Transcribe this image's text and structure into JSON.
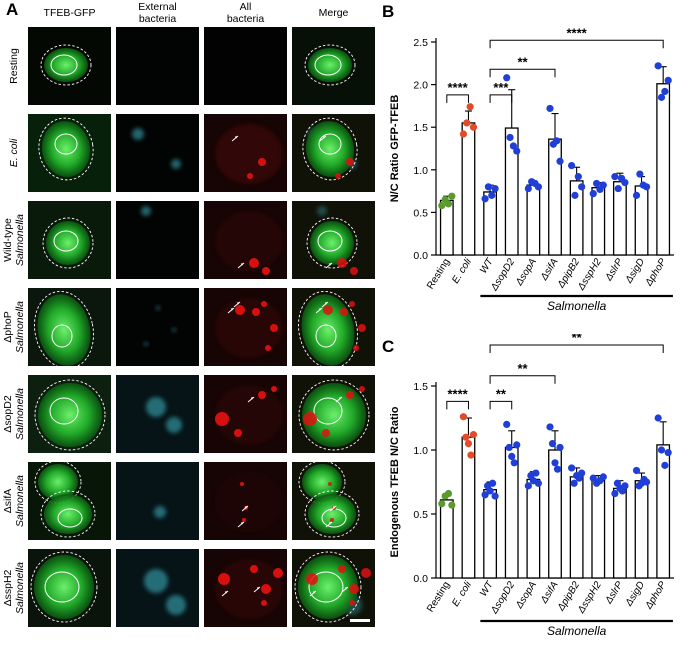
{
  "panel_a": {
    "letter": "A",
    "columns": [
      {
        "id": "tfeb",
        "lines": [
          "TFEB-GFP"
        ]
      },
      {
        "id": "ext",
        "lines": [
          "External",
          "bacteria"
        ]
      },
      {
        "id": "all",
        "lines": [
          "All",
          "bacteria"
        ]
      },
      {
        "id": "merge",
        "lines": [
          "Merge"
        ]
      }
    ],
    "rows": [
      {
        "id": "resting",
        "line1": "Resting",
        "line2": "",
        "italic1": false
      },
      {
        "id": "ecoli",
        "line1": "E. coli",
        "line2": "",
        "italic1": true
      },
      {
        "id": "wt",
        "line1": "Wild-type",
        "line2": "Salmonella",
        "italic1": false
      },
      {
        "id": "phop",
        "line1": "ΔphoP",
        "line2": "Salmonella",
        "italic1": false
      },
      {
        "id": "sopd2",
        "line1": "ΔsopD2",
        "line2": "Salmonella",
        "italic1": false
      },
      {
        "id": "sifa",
        "line1": "ΔsifA",
        "line2": "Salmonella",
        "italic1": false
      },
      {
        "id": "ssph2",
        "line1": "ΔsspH2",
        "line2": "Salmonella",
        "italic1": false
      }
    ],
    "colors": {
      "tfeb_green": "#22b02a",
      "bacteria_red": "#e01010",
      "external_cyan": "#3fb7c4",
      "tile_bg": "#050505"
    }
  },
  "chart_data": [
    {
      "panel_letter": "B",
      "type": "bar",
      "ylabel": "N/C Ratio GFP-TFEB",
      "ylim": [
        0,
        2.5
      ],
      "yticks": [
        0.0,
        0.5,
        1.0,
        1.5,
        2.0,
        2.5
      ],
      "categories": [
        "Resting",
        "E. coli",
        "WT",
        "ΔsopD2",
        "ΔsopA",
        "ΔsifA",
        "ΔpipB2",
        "ΔsspH2",
        "ΔslrP",
        "ΔsigD",
        "ΔphoP"
      ],
      "values": [
        0.64,
        1.55,
        0.74,
        1.49,
        0.82,
        1.36,
        0.87,
        0.79,
        0.86,
        0.81,
        2.01
      ],
      "errors": [
        0.05,
        0.14,
        0.08,
        0.45,
        0.05,
        0.3,
        0.16,
        0.06,
        0.1,
        0.11,
        0.2
      ],
      "points": [
        [
          0.58,
          0.65,
          0.6,
          0.69
        ],
        [
          1.42,
          1.55,
          1.74,
          1.5
        ],
        [
          0.66,
          0.8,
          0.7,
          0.78
        ],
        [
          2.08,
          1.38,
          1.28,
          1.22
        ],
        [
          0.78,
          0.86,
          0.84,
          0.8
        ],
        [
          1.72,
          1.3,
          1.34,
          1.1
        ],
        [
          1.05,
          0.7,
          0.92,
          0.8
        ],
        [
          0.72,
          0.84,
          0.77,
          0.82
        ],
        [
          0.92,
          0.78,
          0.9,
          0.85
        ],
        [
          0.7,
          0.95,
          0.82,
          0.8
        ],
        [
          2.22,
          1.85,
          1.92,
          2.05
        ]
      ],
      "point_colors": [
        "#5a9a2e",
        "#e34a28",
        "#1f3fd6",
        "#1f3fd6",
        "#1f3fd6",
        "#1f3fd6",
        "#1f3fd6",
        "#1f3fd6",
        "#1f3fd6",
        "#1f3fd6",
        "#1f3fd6"
      ],
      "significance": [
        {
          "from": 0,
          "to": 1,
          "label": "****",
          "level": 1.88
        },
        {
          "from": 2,
          "to": 3,
          "label": "***",
          "level": 1.88
        },
        {
          "from": 2,
          "to": 5,
          "label": "**",
          "level": 2.18
        },
        {
          "from": 2,
          "to": 10,
          "label": "****",
          "level": 2.52
        }
      ],
      "group_label": "Salmonella",
      "group_from": 2,
      "group_to": 10
    },
    {
      "panel_letter": "C",
      "type": "bar",
      "ylabel": "Endogenous TFEB N/C Ratio",
      "ylim": [
        0,
        1.5
      ],
      "yticks": [
        0.0,
        0.5,
        1.0,
        1.5
      ],
      "categories": [
        "Resting",
        "E. coli",
        "WT",
        "ΔsopD2",
        "ΔsopA",
        "ΔsifA",
        "ΔpipB2",
        "ΔsspH2",
        "ΔslrP",
        "ΔsigD",
        "ΔphoP"
      ],
      "values": [
        0.61,
        1.1,
        0.69,
        1.02,
        0.77,
        1.0,
        0.79,
        0.76,
        0.7,
        0.76,
        1.04
      ],
      "errors": [
        0.05,
        0.15,
        0.06,
        0.13,
        0.06,
        0.15,
        0.07,
        0.04,
        0.06,
        0.06,
        0.18
      ],
      "points": [
        [
          0.58,
          0.64,
          0.66,
          0.57
        ],
        [
          1.26,
          1.1,
          1.05,
          0.96,
          1.12
        ],
        [
          0.65,
          0.72,
          0.68,
          0.74,
          0.64
        ],
        [
          1.2,
          1.02,
          0.95,
          0.9,
          1.04
        ],
        [
          0.72,
          0.8,
          0.76,
          0.82,
          0.74
        ],
        [
          1.18,
          1.05,
          0.9,
          0.85,
          1.02
        ],
        [
          0.86,
          0.74,
          0.8,
          0.78,
          0.82
        ],
        [
          0.78,
          0.74,
          0.76,
          0.79
        ],
        [
          0.66,
          0.74,
          0.7,
          0.68,
          0.72
        ],
        [
          0.84,
          0.72,
          0.74,
          0.77,
          0.75
        ],
        [
          1.25,
          1.0,
          0.88,
          0.98
        ]
      ],
      "point_colors": [
        "#5a9a2e",
        "#e34a28",
        "#1f3fd6",
        "#1f3fd6",
        "#1f3fd6",
        "#1f3fd6",
        "#1f3fd6",
        "#1f3fd6",
        "#1f3fd6",
        "#1f3fd6",
        "#1f3fd6"
      ],
      "significance": [
        {
          "from": 0,
          "to": 1,
          "label": "****",
          "level": 1.38
        },
        {
          "from": 2,
          "to": 3,
          "label": "**",
          "level": 1.38
        },
        {
          "from": 2,
          "to": 5,
          "label": "**",
          "level": 1.58
        },
        {
          "from": 2,
          "to": 10,
          "label": "**",
          "level": 1.82
        }
      ],
      "group_label": "Salmonella",
      "group_from": 2,
      "group_to": 10
    }
  ]
}
